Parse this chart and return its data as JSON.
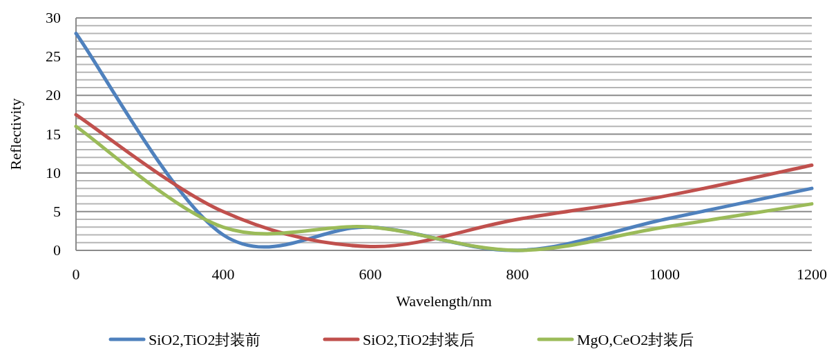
{
  "chart_data": {
    "type": "line",
    "xlabel": "Wavelength/nm",
    "ylabel": "Reflectivity",
    "categories": [
      "0",
      "400",
      "600",
      "800",
      "1000",
      "1200"
    ],
    "series": [
      {
        "name": "SiO2,TiO2封装前",
        "color": "#4f81bd",
        "values": [
          28,
          2,
          3,
          0,
          4,
          8
        ]
      },
      {
        "name": "SiO2,TiO2封装后",
        "color": "#c0504d",
        "values": [
          17.5,
          5,
          0.5,
          4,
          7,
          11
        ]
      },
      {
        "name": "MgO,CeO2封装后",
        "color": "#9bbb59",
        "values": [
          16,
          3,
          3,
          0,
          3,
          6
        ]
      }
    ],
    "ylim": [
      0,
      30
    ],
    "yticks": [
      0,
      {
        "value": 1,
        "label": null
      },
      {
        "value": 2,
        "label": null
      },
      {
        "value": 3,
        "label": null
      },
      {
        "value": 4,
        "label": null
      },
      5,
      {
        "value": 6,
        "label": null
      },
      {
        "value": 7,
        "label": null
      },
      {
        "value": 8,
        "label": null
      },
      {
        "value": 9,
        "label": null
      },
      10,
      {
        "value": 11,
        "label": null
      },
      {
        "value": 12,
        "label": null
      },
      {
        "value": 13,
        "label": null
      },
      {
        "value": 14,
        "label": null
      },
      15,
      {
        "value": 16,
        "label": null
      },
      {
        "value": 17,
        "label": null
      },
      {
        "value": 18,
        "label": null
      },
      {
        "value": 19,
        "label": null
      },
      20,
      {
        "value": 21,
        "label": null
      },
      {
        "value": 22,
        "label": null
      },
      {
        "value": 23,
        "label": null
      },
      {
        "value": 24,
        "label": null
      },
      25,
      {
        "value": 26,
        "label": null
      },
      {
        "value": 27,
        "label": null
      },
      {
        "value": 28,
        "label": null
      },
      {
        "value": 29,
        "label": null
      },
      30
    ],
    "grid": "y",
    "legend": "bottom"
  }
}
